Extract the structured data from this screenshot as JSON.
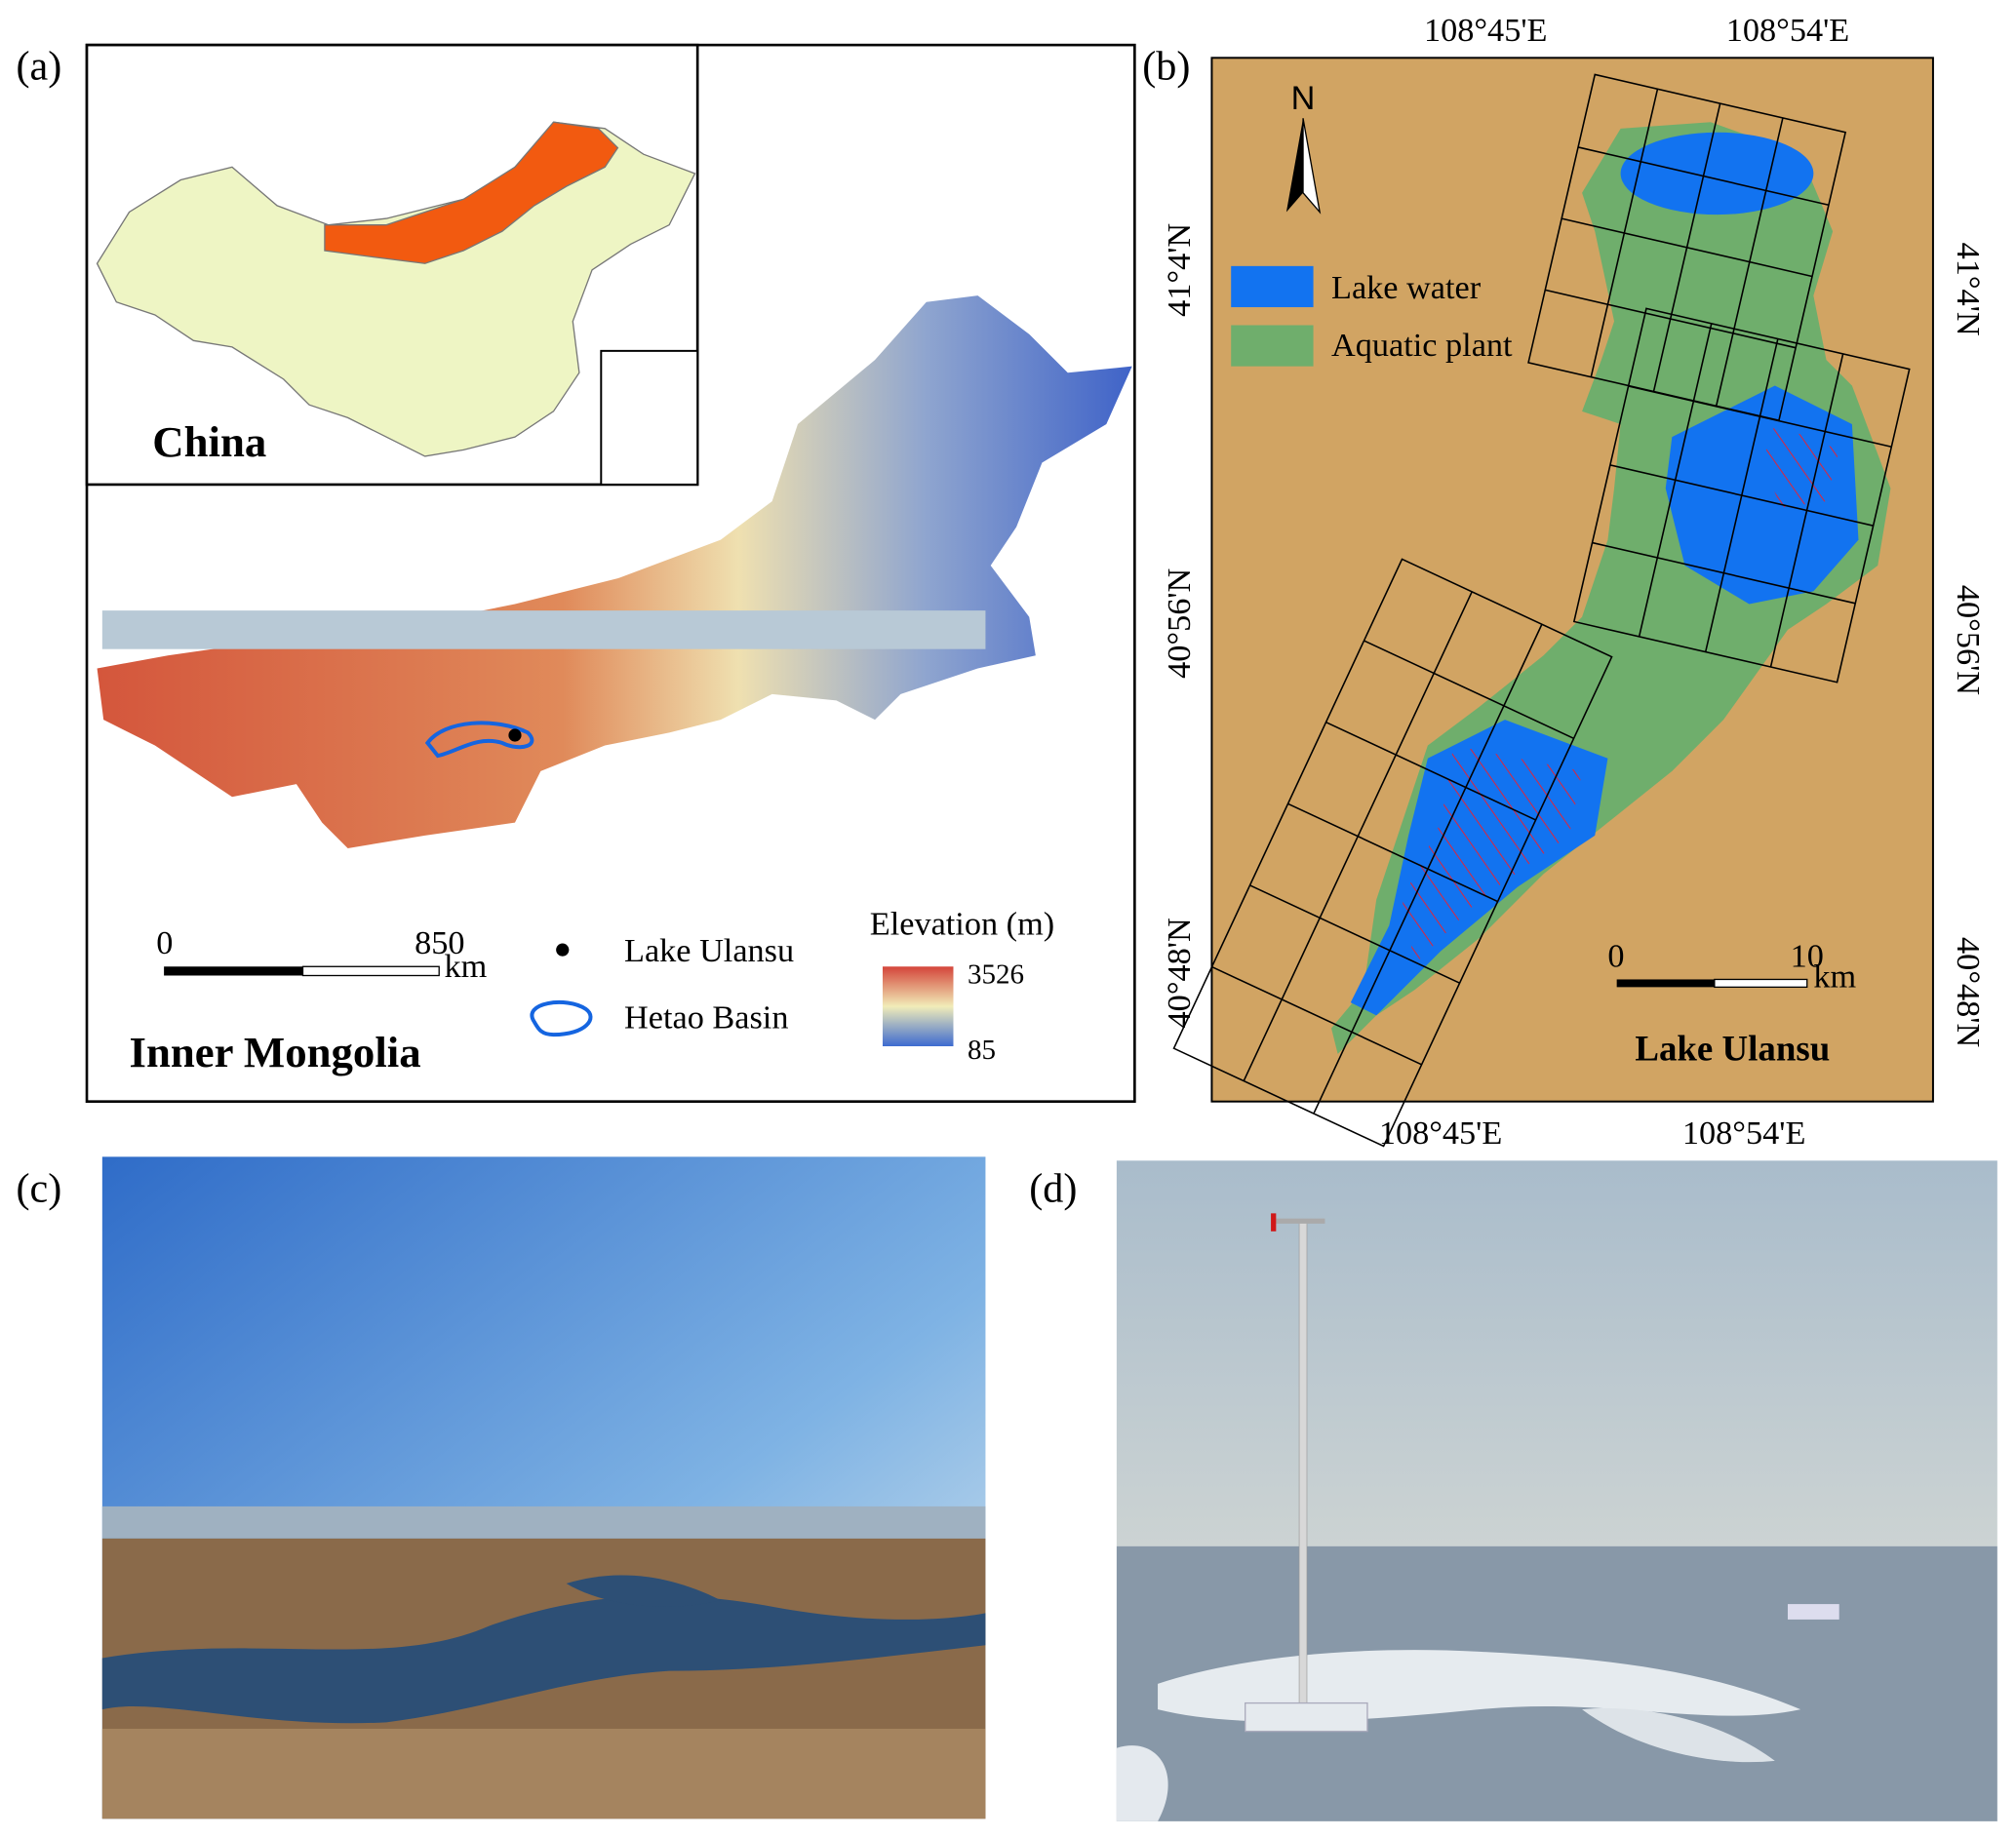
{
  "panels": {
    "a": {
      "label": "(a)",
      "inset_title": "China",
      "title": "Inner Mongolia",
      "scale_bar": {
        "start": "0",
        "end": "850",
        "unit": "km"
      },
      "legend": [
        "Lake Ulansu",
        "Hetao Basin"
      ],
      "elevation": {
        "title": "Elevation (m)",
        "max": "3526",
        "min": "85"
      }
    },
    "b": {
      "label": "(b)",
      "north": "N",
      "top_longitudes": [
        "108°45'E",
        "108°54'E"
      ],
      "bottom_longitudes": [
        "108°45'E",
        "108°54'E"
      ],
      "left_latitudes": [
        "41°4'N",
        "40°56'N",
        "40°48'N"
      ],
      "right_latitudes": [
        "41°4'N",
        "40°56'N",
        "40°48'N"
      ],
      "legend": [
        "Lake water",
        "Aquatic plant"
      ],
      "scale_bar": {
        "start": "0",
        "end": "10",
        "unit": "km"
      },
      "title": "Lake Ulansu"
    },
    "c": {
      "label": "(c)"
    },
    "d": {
      "label": "(d)"
    }
  }
}
